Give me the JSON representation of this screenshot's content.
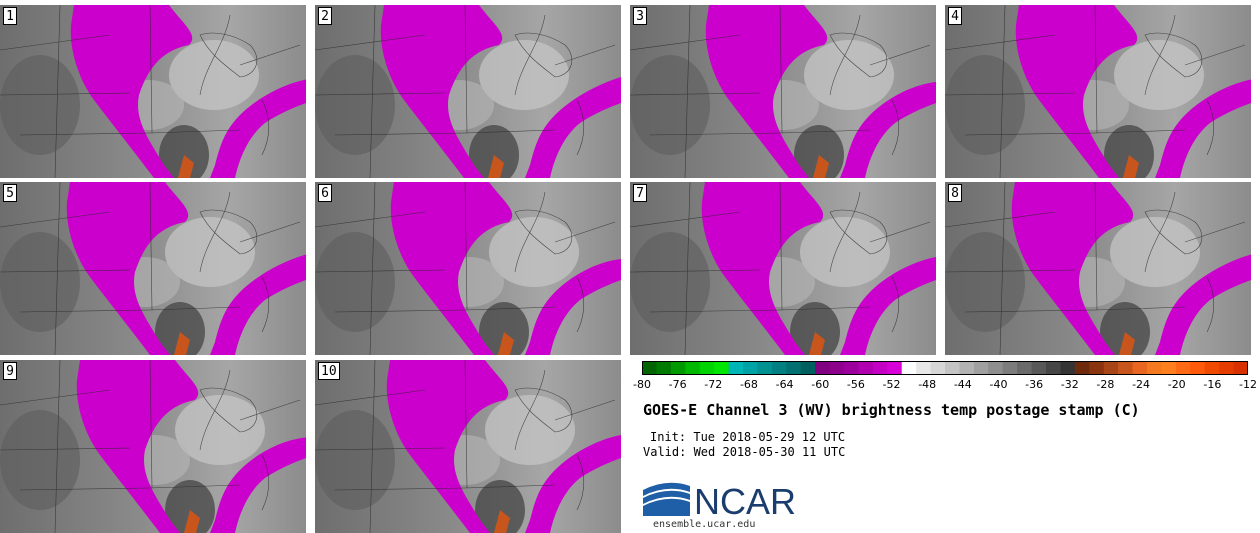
{
  "product": {
    "title": "GOES-E Channel 3 (WV) brightness temp postage stamp (C)",
    "init": "Init: Tue 2018-05-29 12 UTC",
    "valid": "Valid: Wed 2018-05-30 11 UTC"
  },
  "panels": [
    {
      "label": "1"
    },
    {
      "label": "2"
    },
    {
      "label": "3"
    },
    {
      "label": "4"
    },
    {
      "label": "5"
    },
    {
      "label": "6"
    },
    {
      "label": "7"
    },
    {
      "label": "8"
    },
    {
      "label": "9"
    },
    {
      "label": "10"
    }
  ],
  "colorbar": {
    "ticks": [
      "-80",
      "-76",
      "-72",
      "-68",
      "-64",
      "-60",
      "-56",
      "-52",
      "-48",
      "-44",
      "-40",
      "-36",
      "-32",
      "-28",
      "-24",
      "-20",
      "-16",
      "-12"
    ],
    "colors": [
      "#006400",
      "#007a00",
      "#009a00",
      "#00b800",
      "#00d400",
      "#00e600",
      "#00b5b5",
      "#00a3a3",
      "#009191",
      "#008080",
      "#007070",
      "#006060",
      "#800080",
      "#8c008c",
      "#9c009c",
      "#b000b0",
      "#c400c4",
      "#d700d7",
      "#ffffff",
      "#e8e8e8",
      "#d6d6d6",
      "#c4c4c4",
      "#b2b2b2",
      "#a0a0a0",
      "#8e8e8e",
      "#7c7c7c",
      "#6a6a6a",
      "#585858",
      "#464646",
      "#343434",
      "#6e2a0c",
      "#8a3410",
      "#a84516",
      "#c8561c",
      "#e8661f",
      "#f57a1f",
      "#ff7f1f",
      "#ff6a14",
      "#ff5a0a",
      "#f04a00",
      "#e63c00",
      "#d93000"
    ]
  },
  "logo": {
    "text": "NCAR",
    "url": "ensemble.ucar.edu",
    "colors": {
      "blue": "#1f5fa8",
      "dark": "#1a3d6e"
    }
  }
}
